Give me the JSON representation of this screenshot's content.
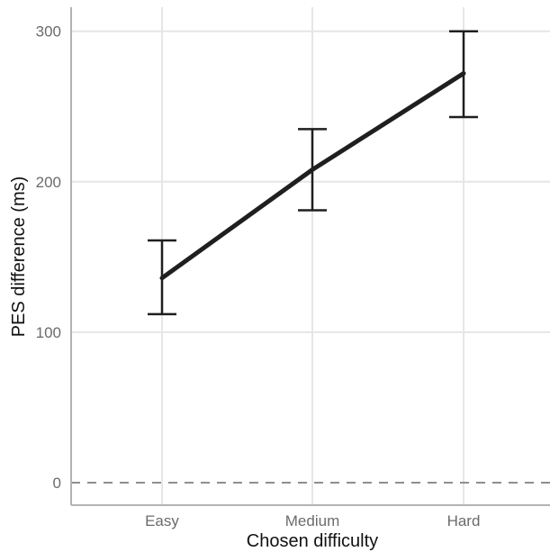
{
  "chart_data": {
    "type": "line",
    "categories": [
      "Easy",
      "Medium",
      "Hard"
    ],
    "series": [
      {
        "values": [
          136,
          208,
          272
        ],
        "error_low": [
          112,
          181,
          243
        ],
        "error_high": [
          161,
          235,
          300
        ]
      }
    ],
    "xlabel": "Chosen difficulty",
    "ylabel": "PES difference (ms)",
    "ylim": [
      -15,
      316
    ],
    "yticks": [
      0,
      100,
      200,
      300
    ],
    "reference_line": 0,
    "grid": true,
    "legend": "none",
    "colors": {
      "line": "#1f1f1f",
      "grid": "#e6e6e6",
      "reference": "#8e8e8e"
    }
  }
}
